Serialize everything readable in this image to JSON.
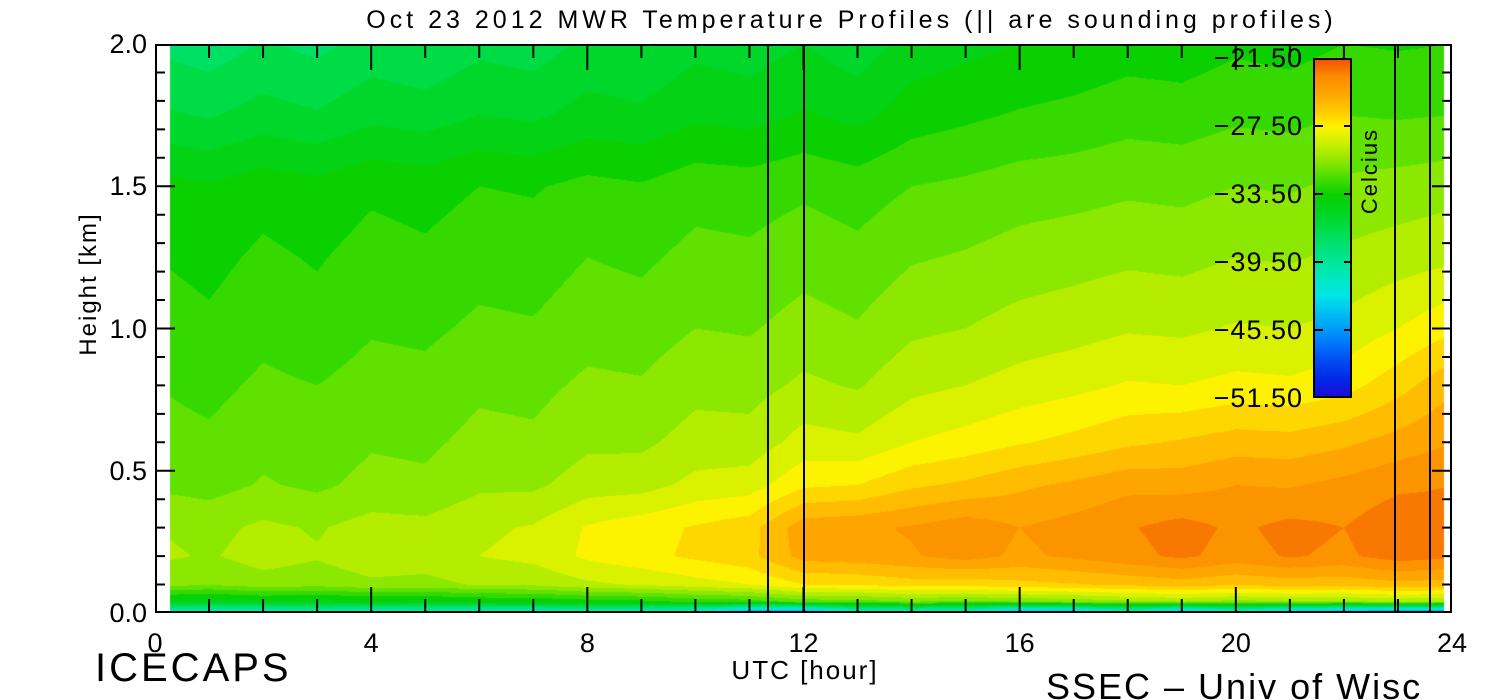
{
  "title": "Oct 23 2012 MWR Temperature Profiles (|| are sounding profiles)",
  "annotations": {
    "project": "ICECAPS",
    "credit": "SSEC – Univ of Wisc"
  },
  "x_axis": {
    "label": "UTC [hour]",
    "range": [
      0,
      24
    ],
    "tick_values": [
      0,
      4,
      8,
      12,
      16,
      20,
      24
    ],
    "tick_labels": [
      "0",
      "4",
      "8",
      "12",
      "16",
      "20",
      "24"
    ],
    "minor_step": 1
  },
  "y_axis": {
    "label": "Height [km]",
    "range": [
      0,
      2
    ],
    "tick_values": [
      0,
      0.5,
      1,
      1.5,
      2
    ],
    "tick_labels": [
      "0.0",
      "0.5",
      "1.0",
      "1.5",
      "2.0"
    ],
    "minor_step": 0.1
  },
  "colorbar": {
    "label": "Celcius",
    "top_value": -21.5,
    "bottom_value": -51.5,
    "tick_values": [
      -21.5,
      -27.5,
      -33.5,
      -39.5,
      -45.5,
      -51.5
    ],
    "tick_labels": [
      "−21.50",
      "−27.50",
      "−33.50",
      "−39.50",
      "−45.50",
      "−51.50"
    ]
  },
  "colors": {
    "background": "#ffffff",
    "axis": "#000000"
  },
  "chart_data": {
    "type": "heatmap",
    "title": "Oct 23 2012 MWR Temperature Profiles (|| are sounding profiles)",
    "xlabel": "UTC [hour]",
    "ylabel": "Height [km]",
    "value_name": "temperature_C",
    "x_range": [
      0,
      24
    ],
    "y_range": [
      0,
      2
    ],
    "data_x_extent": [
      0.27,
      23.85
    ],
    "contour_interval_C": 1.0,
    "sounding_profile_hours": [
      11.34,
      12.0,
      22.94,
      23.59
    ],
    "x": [
      0,
      1,
      2,
      3,
      4,
      5,
      6,
      7,
      8,
      9,
      10,
      11,
      12,
      13,
      14,
      15,
      16,
      17,
      18,
      19,
      20,
      21,
      22,
      23,
      24
    ],
    "y": [
      0.0,
      0.04,
      0.1,
      0.2,
      0.3,
      0.45,
      0.6,
      0.8,
      1.0,
      1.25,
      1.5,
      1.75,
      2.0
    ],
    "values": [
      [
        -41.0,
        -41.5,
        -42.0,
        -41.0,
        -42.0,
        -41.5,
        -42.0,
        -42.0,
        -41.5,
        -42.0,
        -43.0,
        -47.5,
        -48.0,
        -43.0,
        -42.5,
        -43.0,
        -47.5,
        -46.5,
        -43.0,
        -47.0,
        -43.5,
        -46.5,
        -47.5,
        -48.5,
        -48.5
      ],
      [
        -34.5,
        -34.8,
        -34.4,
        -34.6,
        -34.2,
        -34.3,
        -34.0,
        -33.9,
        -33.5,
        -33.3,
        -32.8,
        -32.5,
        -31.6,
        -31.5,
        -31.0,
        -31.2,
        -31.0,
        -30.7,
        -30.3,
        -30.0,
        -30.4,
        -30.1,
        -30.2,
        -29.8,
        -30.0
      ],
      [
        -30.6,
        -30.9,
        -30.4,
        -30.6,
        -30.2,
        -30.3,
        -29.9,
        -29.8,
        -29.2,
        -28.9,
        -28.4,
        -28.0,
        -27.0,
        -26.9,
        -26.5,
        -26.6,
        -26.3,
        -26.1,
        -25.8,
        -25.5,
        -25.9,
        -25.6,
        -25.7,
        -25.3,
        -25.5
      ],
      [
        -29.8,
        -30.1,
        -29.6,
        -29.9,
        -29.4,
        -29.5,
        -29.0,
        -28.7,
        -27.8,
        -27.3,
        -26.8,
        -26.3,
        -24.6,
        -24.4,
        -24.1,
        -23.6,
        -24.2,
        -23.8,
        -23.3,
        -22.8,
        -23.4,
        -22.9,
        -23.2,
        -22.5,
        -22.8
      ],
      [
        -30.0,
        -30.3,
        -29.8,
        -30.1,
        -29.6,
        -29.7,
        -29.2,
        -28.9,
        -27.9,
        -27.4,
        -26.9,
        -26.4,
        -24.4,
        -24.2,
        -23.9,
        -23.4,
        -24.0,
        -23.6,
        -23.1,
        -22.6,
        -23.2,
        -22.7,
        -23.0,
        -22.3,
        -22.6
      ],
      [
        -31.2,
        -31.4,
        -30.9,
        -31.2,
        -30.7,
        -30.8,
        -30.2,
        -30.2,
        -29.5,
        -29.4,
        -28.7,
        -28.5,
        -27.2,
        -27.0,
        -26.2,
        -25.8,
        -25.2,
        -24.8,
        -24.3,
        -24.4,
        -24.0,
        -24.1,
        -23.7,
        -23.2,
        -23.0
      ],
      [
        -31.6,
        -31.8,
        -31.3,
        -31.6,
        -31.1,
        -31.2,
        -30.7,
        -30.8,
        -30.2,
        -30.2,
        -29.6,
        -29.6,
        -28.6,
        -28.8,
        -28.0,
        -27.6,
        -27.1,
        -26.7,
        -26.2,
        -25.9,
        -25.5,
        -25.6,
        -25.2,
        -24.6,
        -24.0
      ],
      [
        -32.0,
        -32.3,
        -31.8,
        -32.0,
        -31.6,
        -31.7,
        -31.2,
        -31.3,
        -30.8,
        -30.9,
        -30.3,
        -30.4,
        -29.8,
        -30.1,
        -29.3,
        -29.0,
        -28.6,
        -28.3,
        -27.9,
        -28.0,
        -27.7,
        -27.8,
        -27.4,
        -26.4,
        -25.2
      ],
      [
        -32.5,
        -32.8,
        -32.3,
        -32.6,
        -32.1,
        -32.2,
        -31.8,
        -31.9,
        -31.4,
        -31.5,
        -31.0,
        -31.1,
        -30.6,
        -30.9,
        -30.2,
        -30.0,
        -29.6,
        -29.4,
        -29.1,
        -29.2,
        -28.9,
        -29.0,
        -28.7,
        -28.0,
        -27.2
      ],
      [
        -33.0,
        -33.3,
        -32.8,
        -33.1,
        -32.6,
        -32.8,
        -32.4,
        -32.5,
        -32.0,
        -32.2,
        -31.7,
        -31.8,
        -31.4,
        -31.7,
        -31.1,
        -30.9,
        -30.6,
        -30.4,
        -30.2,
        -30.3,
        -30.0,
        -30.1,
        -29.8,
        -29.5,
        -29.2
      ],
      [
        -33.6,
        -33.9,
        -33.4,
        -33.7,
        -33.2,
        -33.4,
        -33.0,
        -33.1,
        -32.7,
        -32.9,
        -32.4,
        -32.5,
        -32.2,
        -32.5,
        -32.0,
        -31.8,
        -31.5,
        -31.4,
        -31.2,
        -31.3,
        -31.0,
        -31.1,
        -30.8,
        -30.6,
        -30.4
      ],
      [
        -35.8,
        -36.1,
        -35.6,
        -35.9,
        -35.3,
        -35.5,
        -35.0,
        -35.2,
        -34.6,
        -34.8,
        -34.2,
        -34.4,
        -33.9,
        -34.3,
        -33.5,
        -33.2,
        -32.9,
        -32.7,
        -32.4,
        -32.5,
        -32.2,
        -32.3,
        -32.0,
        -32.1,
        -32.0
      ],
      [
        -37.2,
        -37.6,
        -36.9,
        -37.3,
        -36.6,
        -36.9,
        -36.3,
        -36.5,
        -35.8,
        -35.9,
        -35.3,
        -35.5,
        -35.0,
        -35.6,
        -34.6,
        -34.3,
        -34.0,
        -33.8,
        -33.5,
        -33.6,
        -33.2,
        -33.4,
        -33.0,
        -33.1,
        -33.0
      ]
    ],
    "colormap_stops": [
      [
        -53.5,
        "#4a00c8"
      ],
      [
        -51.5,
        "#1f0ad8"
      ],
      [
        -50.0,
        "#0028e6"
      ],
      [
        -48.5,
        "#0048f2"
      ],
      [
        -47.0,
        "#0070fa"
      ],
      [
        -45.5,
        "#009cf8"
      ],
      [
        -44.0,
        "#00c2f2"
      ],
      [
        -42.5,
        "#00e6e6"
      ],
      [
        -41.0,
        "#00e8c0"
      ],
      [
        -39.5,
        "#00e698"
      ],
      [
        -38.0,
        "#00e270"
      ],
      [
        -36.5,
        "#00dc46"
      ],
      [
        -35.0,
        "#00d51e"
      ],
      [
        -33.5,
        "#0ad000"
      ],
      [
        -32.0,
        "#4ade00"
      ],
      [
        -30.5,
        "#8ce800"
      ],
      [
        -29.0,
        "#c8f000"
      ],
      [
        -27.5,
        "#fdf300"
      ],
      [
        -26.0,
        "#ffc800"
      ],
      [
        -24.5,
        "#ffa500"
      ],
      [
        -23.0,
        "#fb8c00"
      ],
      [
        -21.5,
        "#f25405"
      ]
    ],
    "legend_position": "inside-top-right",
    "grid": "off"
  }
}
